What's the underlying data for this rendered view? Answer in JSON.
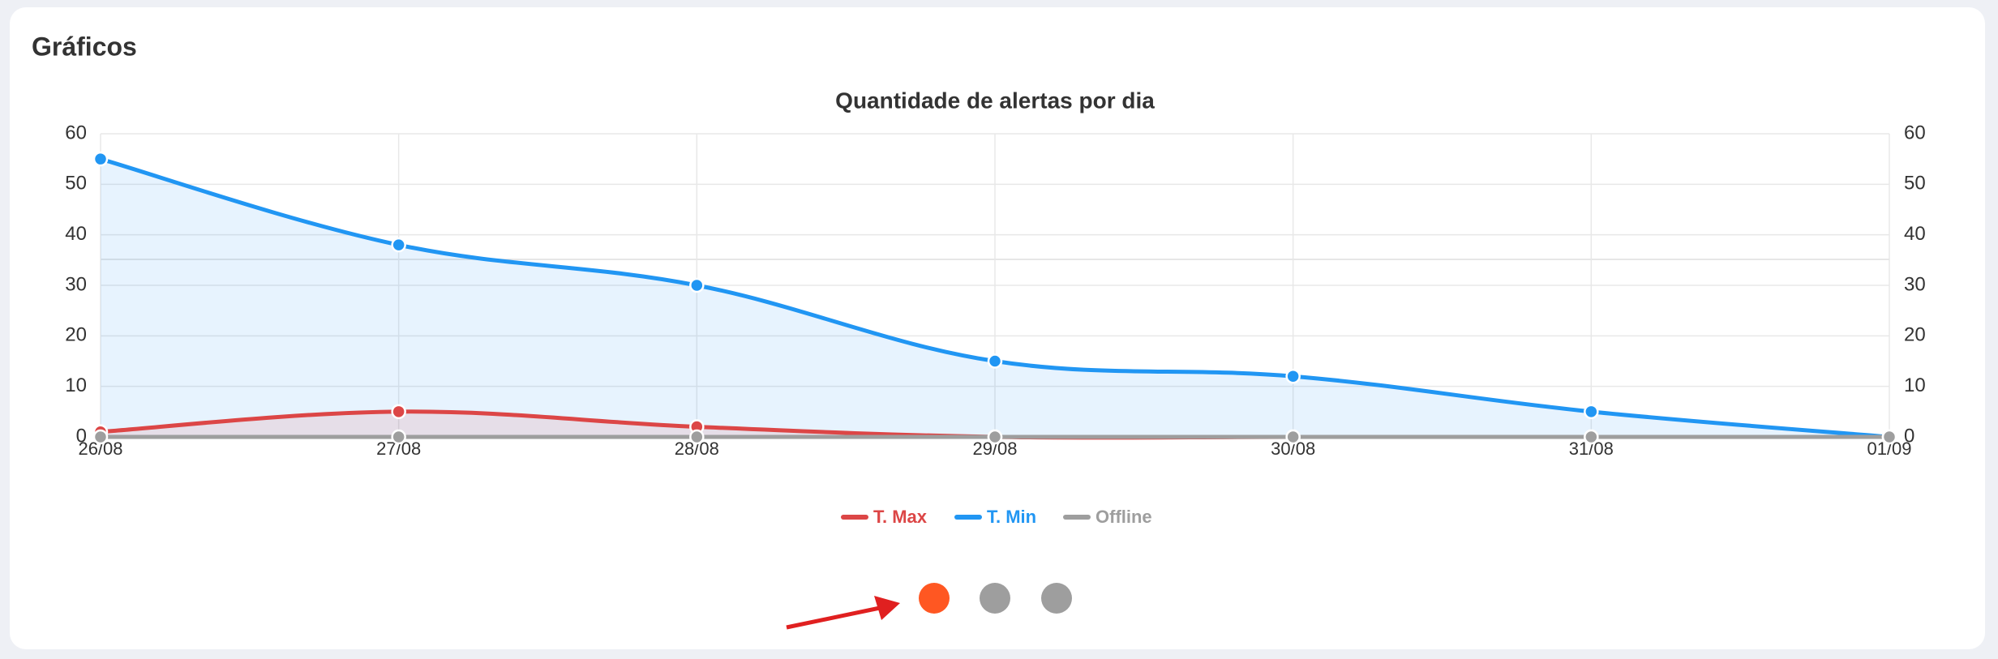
{
  "card_title": "Gráficos",
  "chart_data": {
    "type": "line",
    "title": "Quantidade de alertas por dia",
    "categories": [
      "26/08",
      "27/08",
      "28/08",
      "29/08",
      "30/08",
      "31/08",
      "01/09"
    ],
    "series": [
      {
        "name": "T. Max",
        "color": "#dc4646",
        "values": [
          1,
          5,
          2,
          0,
          0,
          0,
          0
        ]
      },
      {
        "name": "T. Min",
        "color": "#2196f3",
        "values": [
          55,
          38,
          30,
          15,
          12,
          5,
          0
        ]
      },
      {
        "name": "Offline",
        "color": "#9e9e9e",
        "values": [
          0,
          0,
          0,
          0,
          0,
          0,
          0
        ]
      }
    ],
    "ylim": [
      0,
      60
    ],
    "yticks": [
      0,
      10,
      20,
      30,
      40,
      50,
      60
    ],
    "y2lim": [
      0,
      60
    ],
    "y2ticks": [
      0,
      10,
      20,
      30,
      40,
      50,
      60
    ],
    "grid": true,
    "legend": "bottom"
  }
}
